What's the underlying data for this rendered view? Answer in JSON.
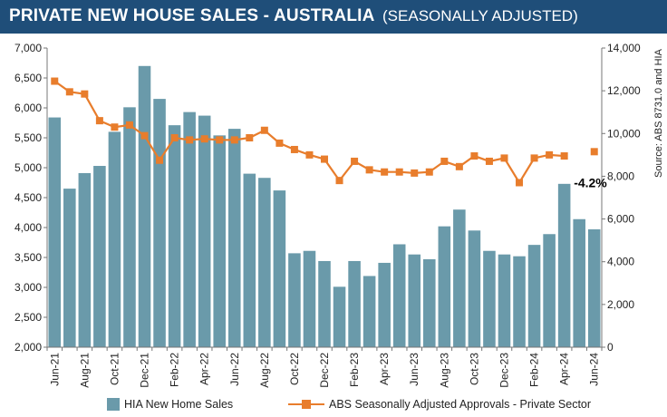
{
  "header": {
    "title": "PRIVATE NEW HOUSE SALES -  AUSTRALIA",
    "subtitle": "(SEASONALLY ADJUSTED)"
  },
  "colors": {
    "bars": "#6a9aaa",
    "line": "#e87d2c",
    "header_bg": "#1f4e79"
  },
  "chart_data": {
    "type": "bar+line",
    "categories": [
      "Jun-21",
      "Jul-21",
      "Aug-21",
      "Sep-21",
      "Oct-21",
      "Nov-21",
      "Dec-21",
      "Jan-22",
      "Feb-22",
      "Mar-22",
      "Apr-22",
      "May-22",
      "Jun-22",
      "Jul-22",
      "Aug-22",
      "Sep-22",
      "Oct-22",
      "Nov-22",
      "Dec-22",
      "Jan-23",
      "Feb-23",
      "Mar-23",
      "Apr-23",
      "May-23",
      "Jun-23",
      "Jul-23",
      "Aug-23",
      "Sep-23",
      "Oct-23",
      "Nov-23",
      "Dec-23",
      "Jan-24",
      "Feb-24",
      "Mar-24",
      "Apr-24",
      "May-24",
      "Jun-24"
    ],
    "x_tick_labels": [
      "Jun-21",
      "Aug-21",
      "Oct-21",
      "Dec-21",
      "Feb-22",
      "Apr-22",
      "Jun-22",
      "Aug-22",
      "Oct-22",
      "Dec-22",
      "Feb-23",
      "Apr-23",
      "Jun-23",
      "Aug-23",
      "Oct-23",
      "Dec-23",
      "Feb-24",
      "Apr-24",
      "Jun-24"
    ],
    "series": [
      {
        "name": "HIA New Home Sales",
        "type": "bar",
        "axis": "left",
        "values": [
          5840,
          4650,
          4910,
          5030,
          5600,
          6010,
          6700,
          6150,
          5710,
          5930,
          5870,
          5540,
          5650,
          4900,
          4830,
          4620,
          3570,
          3610,
          3440,
          3010,
          3440,
          3190,
          3410,
          3720,
          3550,
          3470,
          4020,
          4300,
          3950,
          3610,
          3550,
          3520,
          3710,
          3890,
          4730,
          4140,
          3970
        ]
      },
      {
        "name": "ABS Seasonally Adjusted Approvals - Private Sector",
        "type": "line",
        "axis": "right",
        "values": [
          12450,
          11950,
          11850,
          10600,
          10300,
          10400,
          9900,
          8750,
          9800,
          9700,
          9750,
          9700,
          9700,
          9800,
          10150,
          9550,
          9250,
          9000,
          8800,
          7800,
          8700,
          8300,
          8200,
          8200,
          8150,
          8200,
          8700,
          8450,
          8950,
          8700,
          8850,
          7700,
          8850,
          9000,
          8950,
          null,
          9150
        ]
      }
    ],
    "left_axis": {
      "ylim": [
        2000,
        7000
      ],
      "ticks": [
        "2,000",
        "2,500",
        "3,000",
        "3,500",
        "4,000",
        "4,500",
        "5,000",
        "5,500",
        "6,000",
        "6,500",
        "7,000"
      ]
    },
    "right_axis": {
      "ylim": [
        0,
        14000
      ],
      "ticks": [
        "0",
        "2,000",
        "4,000",
        "6,000",
        "8,000",
        "10,000",
        "12,000",
        "14,000"
      ],
      "label": "Source: ABS 8731.0 and HIA"
    },
    "annotation": "-4.2%",
    "legend": {
      "bar_label": "HIA New Home Sales",
      "line_label": "ABS Seasonally Adjusted Approvals - Private Sector",
      "placement": "bottom"
    }
  }
}
